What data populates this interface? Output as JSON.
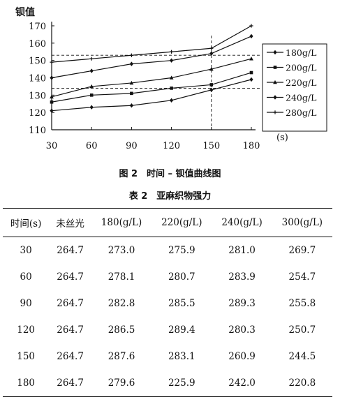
{
  "chart_data": {
    "type": "line",
    "ylabel": "钡值",
    "xlabel": "(s)",
    "x": [
      30,
      60,
      90,
      120,
      150,
      180
    ],
    "xlim": [
      30,
      180
    ],
    "ylim": [
      110,
      170
    ],
    "yticks": [
      110,
      120,
      130,
      140,
      150,
      160,
      170
    ],
    "grid": false,
    "legend_position": "right",
    "reference_lines": {
      "x": 150,
      "y": [
        134,
        153
      ]
    },
    "series": [
      {
        "name": "180g/L",
        "marker": "diamond",
        "values": [
          121,
          123,
          124,
          127,
          133,
          139
        ]
      },
      {
        "name": "200g/L",
        "marker": "square",
        "values": [
          126,
          130,
          131,
          134,
          136,
          143
        ]
      },
      {
        "name": "220g/L",
        "marker": "triangle",
        "values": [
          129,
          135,
          137,
          140,
          145,
          151
        ]
      },
      {
        "name": "240g/L",
        "marker": "diamond",
        "values": [
          140,
          144,
          148,
          150,
          154,
          164
        ]
      },
      {
        "name": "280g/L",
        "marker": "cross",
        "values": [
          149,
          151,
          153,
          155,
          157,
          170
        ]
      }
    ]
  },
  "figure_caption": "图 2　时间 – 钡值曲线图",
  "table": {
    "caption": "表 2　亚麻织物强力",
    "headers": [
      "时间(s)",
      "未丝光",
      "180(g/L)",
      "220(g/L)",
      "240(g/L)",
      "300(g/L)"
    ],
    "rows": [
      [
        "30",
        "264.7",
        "273.0",
        "275.9",
        "281.0",
        "269.7"
      ],
      [
        "60",
        "264.7",
        "278.1",
        "280.7",
        "283.9",
        "254.7"
      ],
      [
        "90",
        "264.7",
        "282.8",
        "285.5",
        "289.3",
        "255.8"
      ],
      [
        "120",
        "264.7",
        "286.5",
        "289.4",
        "280.3",
        "250.7"
      ],
      [
        "150",
        "264.7",
        "287.6",
        "283.1",
        "260.9",
        "244.5"
      ],
      [
        "180",
        "264.7",
        "279.6",
        "225.9",
        "242.0",
        "220.8"
      ]
    ]
  }
}
